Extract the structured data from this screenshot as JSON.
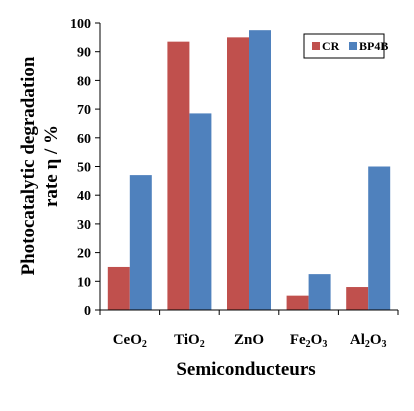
{
  "chart_data": {
    "type": "bar",
    "categories": [
      "CeO2",
      "TiO2",
      "ZnO",
      "Fe2O3",
      "Al2O3"
    ],
    "category_labels": [
      {
        "base": "CeO",
        "sub": "2",
        "tail": ""
      },
      {
        "base": "TiO",
        "sub": "2",
        "tail": ""
      },
      {
        "base": "ZnO",
        "sub": "",
        "tail": ""
      },
      {
        "base": "Fe",
        "sub": "2",
        "tail": "O",
        "sub2": "3"
      },
      {
        "base": "Al",
        "sub": "2",
        "tail": "O",
        "sub2": "3"
      }
    ],
    "series": [
      {
        "name": "CR",
        "color": "#c0504d",
        "values": [
          15,
          93.5,
          95,
          5,
          8
        ]
      },
      {
        "name": "BP4B",
        "color": "#4f81bd",
        "values": [
          47,
          68.5,
          97.5,
          12.5,
          50
        ]
      }
    ],
    "xlabel": "Semiconducteurs",
    "ylabel_line1": "Photocatalytic degradation",
    "ylabel_line2": "rate η / %",
    "ylim": [
      0,
      100
    ],
    "yticks": [
      "0",
      "10",
      "20",
      "30",
      "40",
      "50",
      "60",
      "70",
      "80",
      "90",
      "100"
    ],
    "grid": false,
    "legend_position": "top-right"
  }
}
